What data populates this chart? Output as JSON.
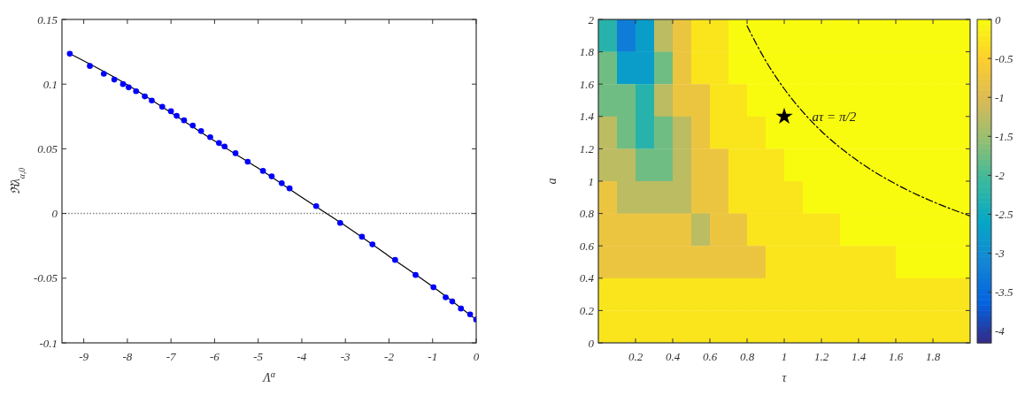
{
  "chart_data": [
    {
      "type": "scatter",
      "xlabel": "Λ$^{α}$",
      "ylabel": "ℜλ$_{α,0}$",
      "xlim": [
        -9.5,
        0
      ],
      "ylim": [
        -0.1,
        0.15
      ],
      "xticks": [
        -9,
        -8,
        -7,
        -6,
        -5,
        -4,
        -3,
        -2,
        -1,
        0
      ],
      "yticks": [
        -0.1,
        -0.05,
        0,
        0.05,
        0.1,
        0.15
      ],
      "grid": false,
      "ref_lines": [
        {
          "axis": "y",
          "value": 0,
          "line_style": "dotted",
          "color": "#888888"
        }
      ],
      "series": [
        {
          "type": "line",
          "color": "#000000",
          "marker": "none",
          "x": [
            -9.35,
            -8,
            -7,
            -6,
            -5,
            -4,
            -3,
            -2,
            -1,
            0
          ],
          "values": [
            0.124,
            0.0995,
            0.078,
            0.056,
            0.035,
            0.0125,
            -0.0095,
            -0.033,
            -0.0565,
            -0.082
          ]
        },
        {
          "type": "scatter",
          "color": "#0000ff",
          "marker": "circle",
          "x": [
            -9.32,
            -8.86,
            -8.54,
            -8.3,
            -8.1,
            -7.97,
            -7.8,
            -7.6,
            -7.44,
            -7.2,
            -7.0,
            -6.87,
            -6.7,
            -6.5,
            -6.31,
            -6.1,
            -5.9,
            -5.77,
            -5.52,
            -5.24,
            -4.89,
            -4.69,
            -4.46,
            -4.28,
            -3.67,
            -3.12,
            -2.62,
            -2.38,
            -1.86,
            -1.39,
            -0.98,
            -0.7,
            -0.55,
            -0.35,
            -0.14,
            0
          ],
          "values": [
            0.1235,
            0.114,
            0.108,
            0.1035,
            0.1,
            0.0975,
            0.0945,
            0.0905,
            0.0873,
            0.0825,
            0.079,
            0.0755,
            0.072,
            0.068,
            0.0637,
            0.059,
            0.0545,
            0.0518,
            0.0466,
            0.04,
            0.0329,
            0.0287,
            0.0234,
            0.0194,
            0.0057,
            -0.0073,
            -0.018,
            -0.0239,
            -0.0359,
            -0.0475,
            -0.057,
            -0.0648,
            -0.068,
            -0.0735,
            -0.078,
            -0.082
          ]
        }
      ]
    },
    {
      "type": "heatmap",
      "xlabel": "τ",
      "ylabel": "a",
      "xlim": [
        0,
        2
      ],
      "ylim": [
        0,
        2
      ],
      "xticks": [
        0.2,
        0.4,
        0.6,
        0.8,
        1,
        1.2,
        1.4,
        1.6,
        1.8
      ],
      "yticks": [
        0,
        0.2,
        0.4,
        0.6,
        0.8,
        1,
        1.2,
        1.4,
        1.6,
        1.8,
        2
      ],
      "clim": [
        -4.15,
        0
      ],
      "cticks": [
        {
          "value": 0,
          "label": "0"
        },
        {
          "value": -0.5,
          "label": "-0.5"
        },
        {
          "value": -1,
          "label": "-1"
        },
        {
          "value": -1.5,
          "label": "-1.5"
        },
        {
          "value": -2,
          "label": "-2"
        },
        {
          "value": -2.5,
          "label": "-2.5"
        },
        {
          "value": -3,
          "label": "-3"
        },
        {
          "value": -3.5,
          "label": "-3.5"
        },
        {
          "value": -4,
          "label": "-4"
        }
      ],
      "cells": [
        [
          -2.25,
          -3.25,
          -2.75,
          -1.25,
          -0.75,
          -0.25,
          -0.25,
          0,
          0,
          0,
          0,
          0,
          0,
          0,
          0,
          0,
          0,
          0,
          0,
          0
        ],
        [
          -1.75,
          -2.75,
          -2.75,
          -1.75,
          -0.75,
          -0.25,
          -0.25,
          0,
          0,
          0,
          0,
          0,
          0,
          0,
          0,
          0,
          0,
          0,
          0,
          0
        ],
        [
          -1.75,
          -1.75,
          -2.25,
          -1.25,
          -0.75,
          -0.75,
          -0.25,
          -0.25,
          0,
          0,
          0,
          0,
          0,
          0,
          0,
          0,
          0,
          0,
          0,
          0
        ],
        [
          -1.25,
          -1.75,
          -2.25,
          -1.75,
          -1.25,
          -0.75,
          -0.25,
          -0.25,
          -0.25,
          0,
          0,
          0,
          0,
          0,
          0,
          0,
          0,
          0,
          0,
          0
        ],
        [
          -1.25,
          -1.25,
          -1.75,
          -1.75,
          -1.25,
          -0.75,
          -0.75,
          -0.25,
          -0.25,
          -0.25,
          0,
          0,
          0,
          0,
          0,
          0,
          0,
          0,
          0,
          0
        ],
        [
          -0.75,
          -1.25,
          -1.25,
          -1.25,
          -1.25,
          -0.75,
          -0.75,
          -0.25,
          -0.25,
          -0.25,
          -0.25,
          0,
          0,
          0,
          0,
          0,
          0,
          0,
          0,
          0
        ],
        [
          -0.75,
          -0.75,
          -0.75,
          -0.75,
          -0.75,
          -1.25,
          -0.75,
          -0.75,
          -0.25,
          -0.25,
          -0.25,
          -0.25,
          -0.25,
          0,
          0,
          0,
          0,
          0,
          0,
          0
        ],
        [
          -0.75,
          -0.75,
          -0.75,
          -0.75,
          -0.75,
          -0.75,
          -0.75,
          -0.75,
          -0.75,
          -0.25,
          -0.25,
          -0.25,
          -0.25,
          -0.25,
          -0.25,
          -0.25,
          0,
          0,
          0,
          0
        ],
        [
          -0.25,
          -0.25,
          -0.25,
          -0.25,
          -0.25,
          -0.25,
          -0.25,
          -0.25,
          -0.25,
          -0.25,
          -0.25,
          -0.25,
          -0.25,
          -0.25,
          -0.25,
          -0.25,
          -0.25,
          -0.25,
          -0.25,
          -0.25
        ],
        [
          -0.25,
          -0.25,
          -0.25,
          -0.25,
          -0.25,
          -0.25,
          -0.25,
          -0.25,
          -0.25,
          -0.25,
          -0.25,
          -0.25,
          -0.25,
          -0.25,
          -0.25,
          -0.25,
          -0.25,
          -0.25,
          -0.25,
          -0.25
        ]
      ],
      "annotations": [
        {
          "text": "aτ = π/2",
          "x": 1.15,
          "y": 1.4
        }
      ],
      "series": [
        {
          "type": "line",
          "color": "#000000",
          "marker": "none",
          "line_style": "dashed",
          "x": [
            0.8,
            0.9,
            1,
            1.1,
            1.2,
            1.4,
            1.6,
            1.8,
            2
          ],
          "values": [
            1.96,
            1.745,
            1.571,
            1.428,
            1.309,
            1.122,
            0.982,
            0.873,
            0.785
          ]
        },
        {
          "type": "scatter",
          "color": "#000000",
          "marker": "star",
          "x": [
            1
          ],
          "values": [
            1.4
          ]
        }
      ]
    }
  ]
}
